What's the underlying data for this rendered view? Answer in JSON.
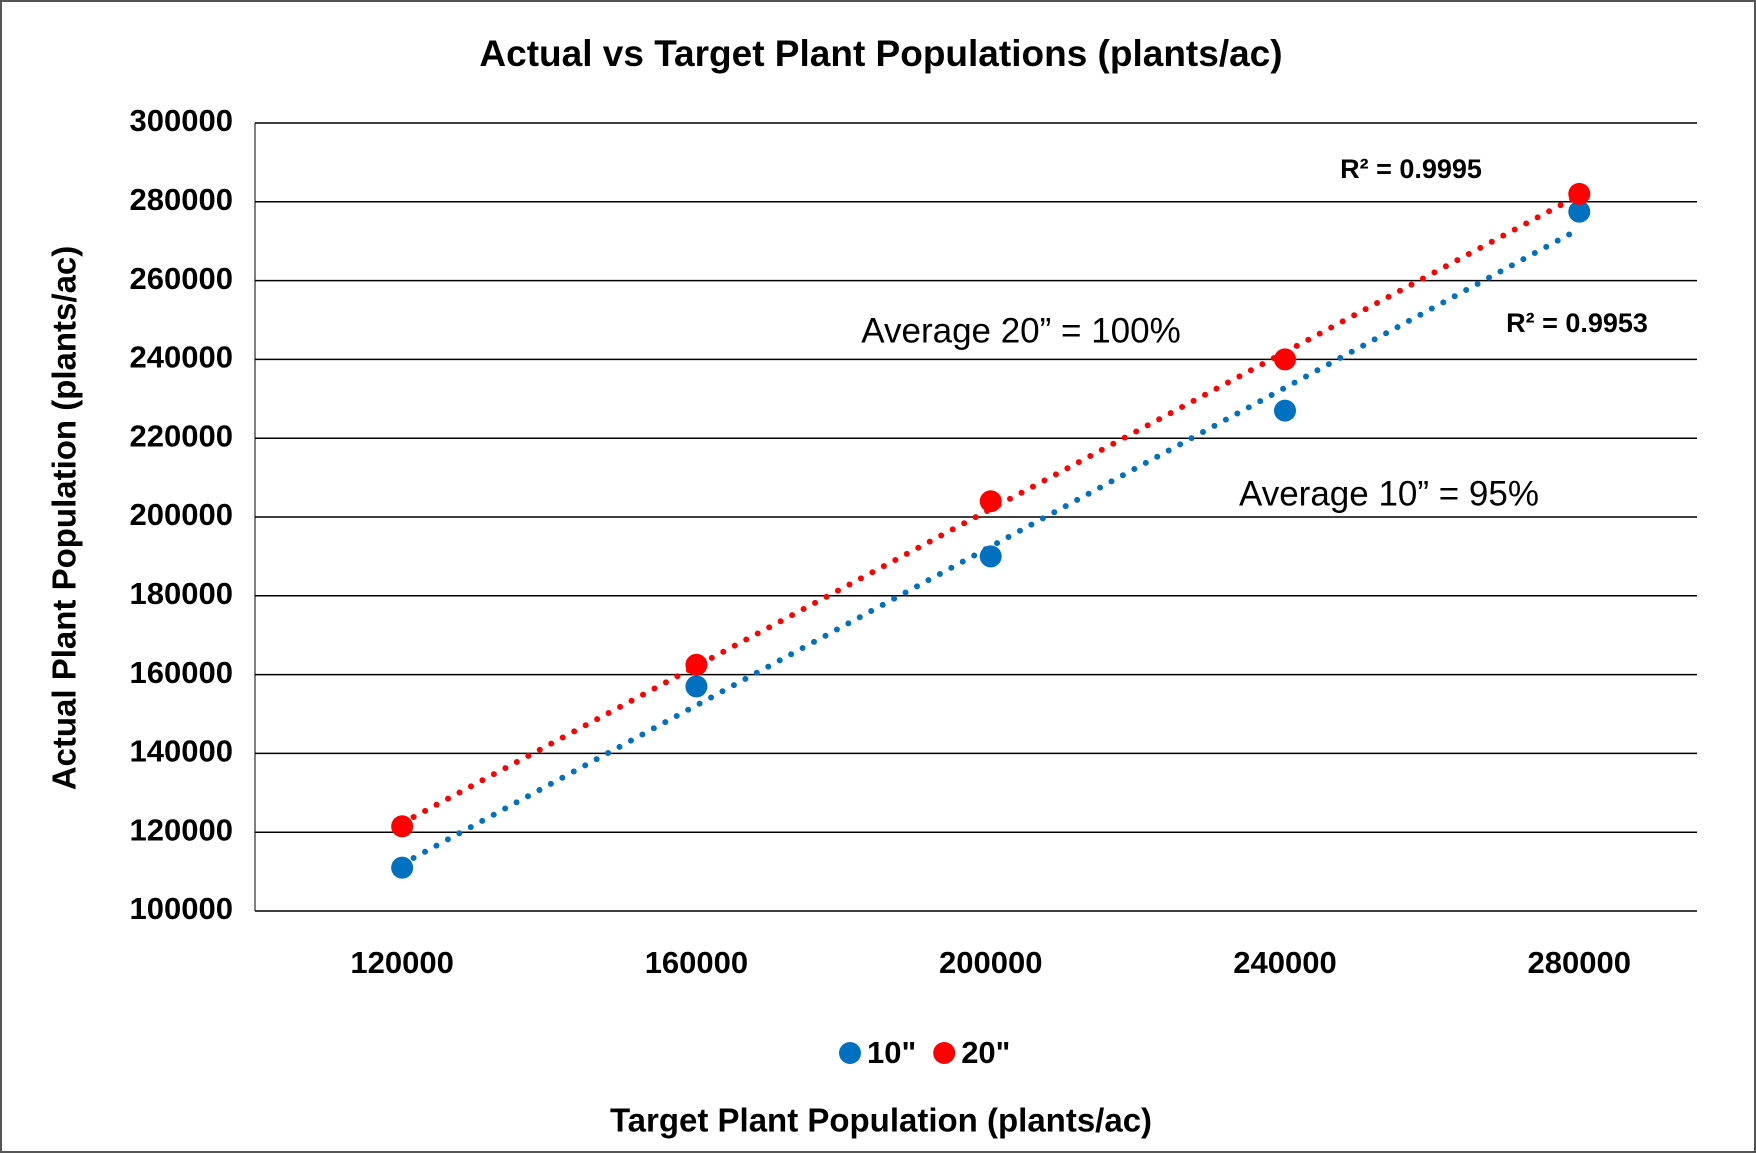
{
  "chart_data": {
    "type": "scatter",
    "title": "Actual vs Target Plant Populations (plants/ac)",
    "x_label": "Target Plant Population (plants/ac)",
    "y_label": "Actual Plant Population (plants/ac)",
    "x": [
      120000,
      160000,
      200000,
      240000,
      280000
    ],
    "series": [
      {
        "name": "10\"",
        "color": "#0070c0",
        "values": [
          111000,
          157000,
          190000,
          227000,
          277500
        ]
      },
      {
        "name": "20\"",
        "color": "#ff0000",
        "values": [
          121500,
          162500,
          204000,
          240000,
          282000
        ]
      }
    ],
    "xlim": [
      100000,
      296000
    ],
    "xticks": [
      120000,
      160000,
      200000,
      240000,
      280000
    ],
    "ylim": [
      100000,
      300000
    ],
    "yticks": [
      100000,
      120000,
      140000,
      160000,
      180000,
      200000,
      220000,
      240000,
      260000,
      280000,
      300000
    ],
    "grid": true,
    "trendline": true,
    "legend": "bottom",
    "annotations": [
      "R² = 0.9995",
      "R² = 0.9953",
      "Average 20” = 100%",
      "Average 10” = 95%"
    ]
  }
}
